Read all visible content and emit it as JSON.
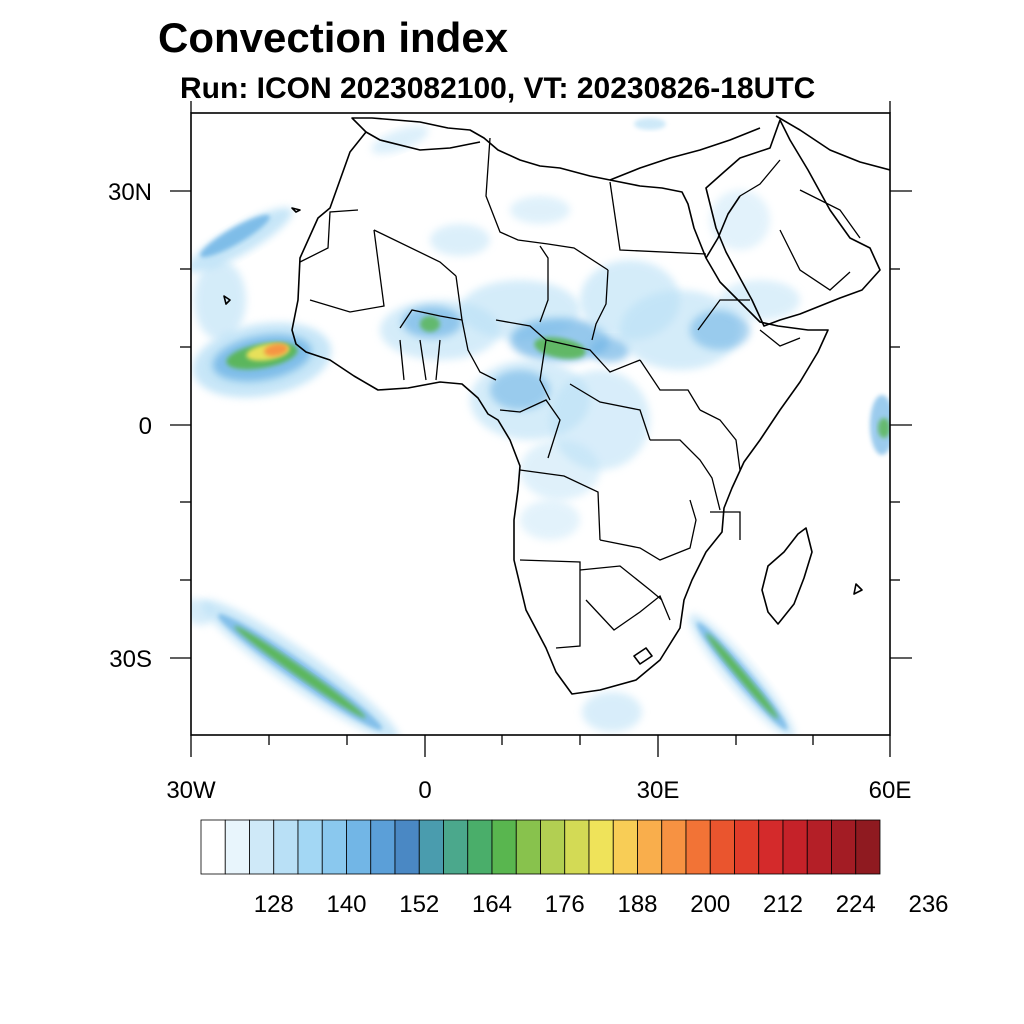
{
  "title": "Convection index",
  "subtitle": "Run: ICON 2023082100,  VT: 20230826-18UTC",
  "axes": {
    "lon_range": [
      -30,
      60
    ],
    "lat_range": [
      -40,
      40
    ],
    "x_ticks": [
      "30W",
      "0",
      "30E",
      "60E"
    ],
    "y_ticks": [
      "30N",
      "0",
      "30S"
    ]
  },
  "colorbar": {
    "labels": [
      "128",
      "140",
      "152",
      "164",
      "176",
      "188",
      "200",
      "212",
      "224",
      "236"
    ],
    "colors": [
      "#ffffff",
      "#e8f5fc",
      "#cfe9f8",
      "#b9e0f6",
      "#a3d7f4",
      "#8ac8ee",
      "#72b6e6",
      "#5b9fd8",
      "#4a88c4",
      "#4a9cae",
      "#4ba88c",
      "#4aae6a",
      "#59b64f",
      "#88c24d",
      "#b2cf52",
      "#d3da55",
      "#efe35a",
      "#f8cd56",
      "#f9ae4c",
      "#f79242",
      "#f27336",
      "#ea552e",
      "#e03c2a",
      "#d42a2b",
      "#c52229",
      "#b41f27",
      "#a31c24",
      "#8f1a20"
    ]
  },
  "shading_colors": {
    "light": "#b9e0f6",
    "mid": "#72b6e6",
    "dark": "#4a88c4",
    "green": "#59b64f",
    "lime": "#b2cf52",
    "yellow": "#efe35a",
    "orange": "#f79242",
    "red": "#e03c2a"
  }
}
